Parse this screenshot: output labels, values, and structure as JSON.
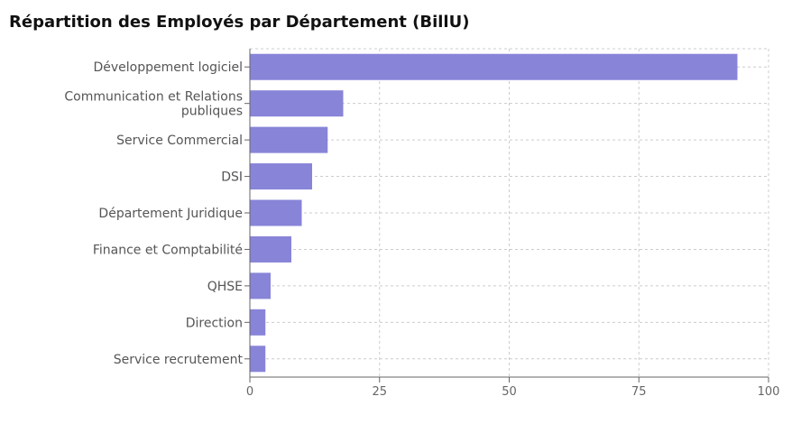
{
  "chart_data": {
    "type": "bar",
    "orientation": "horizontal",
    "title": "Répartition des Employés par Département (BillU)",
    "categories": [
      "Développement logiciel",
      "Communication et Relations publiques",
      "Service Commercial",
      "DSI",
      "Département Juridique",
      "Finance et Comptabilité",
      "QHSE",
      "Direction",
      "Service recrutement"
    ],
    "category_lines": [
      [
        "Développement logiciel"
      ],
      [
        "Communication et Relations",
        "publiques"
      ],
      [
        "Service Commercial"
      ],
      [
        "DSI"
      ],
      [
        "Département Juridique"
      ],
      [
        "Finance et Comptabilité"
      ],
      [
        "QHSE"
      ],
      [
        "Direction"
      ],
      [
        "Service recrutement"
      ]
    ],
    "values": [
      94,
      18,
      15,
      12,
      10,
      8,
      4,
      3,
      3
    ],
    "xlim": [
      0,
      100
    ],
    "xticks": [
      0,
      25,
      50,
      75,
      100
    ],
    "xlabel": "",
    "ylabel": "",
    "grid": true,
    "bar_color": "#8884d8",
    "grid_color": "#cccccc",
    "axis_color": "#666666"
  }
}
